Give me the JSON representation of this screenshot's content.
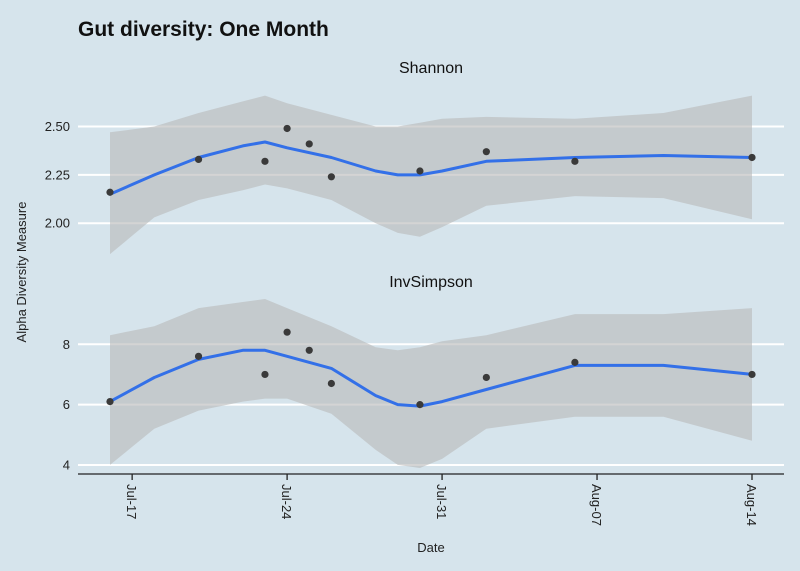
{
  "chart_data": {
    "type": "line",
    "title": "Gut diversity: One Month",
    "xlabel": "Date",
    "ylabel": "Alpha Diversity Measure",
    "x_ticks": [
      "Jul-17",
      "Jul-24",
      "Jul-31",
      "Aug-07",
      "Aug-14"
    ],
    "x_range": [
      "2023-07-16",
      "2023-08-14"
    ],
    "facets": [
      {
        "title": "Shannon",
        "ylim": [
          1.82,
          2.72
        ],
        "y_ticks": [
          2.0,
          2.25,
          2.5
        ],
        "y_tick_labels": [
          "2.00",
          "2.25",
          "2.50"
        ],
        "points": [
          {
            "date": "2023-07-16",
            "value": 2.16
          },
          {
            "date": "2023-07-20",
            "value": 2.33
          },
          {
            "date": "2023-07-23",
            "value": 2.32
          },
          {
            "date": "2023-07-24",
            "value": 2.49
          },
          {
            "date": "2023-07-25",
            "value": 2.41
          },
          {
            "date": "2023-07-26",
            "value": 2.24
          },
          {
            "date": "2023-07-30",
            "value": 2.27
          },
          {
            "date": "2023-08-02",
            "value": 2.37
          },
          {
            "date": "2023-08-06",
            "value": 2.32
          },
          {
            "date": "2023-08-14",
            "value": 2.34
          }
        ],
        "smooth": [
          {
            "date": "2023-07-16",
            "value": 2.15,
            "lower": 1.84,
            "upper": 2.47
          },
          {
            "date": "2023-07-18",
            "value": 2.25,
            "lower": 2.03,
            "upper": 2.5
          },
          {
            "date": "2023-07-20",
            "value": 2.34,
            "lower": 2.12,
            "upper": 2.57
          },
          {
            "date": "2023-07-22",
            "value": 2.4,
            "lower": 2.17,
            "upper": 2.63
          },
          {
            "date": "2023-07-23",
            "value": 2.42,
            "lower": 2.2,
            "upper": 2.66
          },
          {
            "date": "2023-07-24",
            "value": 2.39,
            "lower": 2.18,
            "upper": 2.62
          },
          {
            "date": "2023-07-26",
            "value": 2.34,
            "lower": 2.12,
            "upper": 2.56
          },
          {
            "date": "2023-07-28",
            "value": 2.27,
            "lower": 2.0,
            "upper": 2.5
          },
          {
            "date": "2023-07-29",
            "value": 2.25,
            "lower": 1.95,
            "upper": 2.5
          },
          {
            "date": "2023-07-30",
            "value": 2.25,
            "lower": 1.93,
            "upper": 2.52
          },
          {
            "date": "2023-07-31",
            "value": 2.27,
            "lower": 1.98,
            "upper": 2.54
          },
          {
            "date": "2023-08-02",
            "value": 2.32,
            "lower": 2.09,
            "upper": 2.55
          },
          {
            "date": "2023-08-06",
            "value": 2.34,
            "lower": 2.14,
            "upper": 2.54
          },
          {
            "date": "2023-08-10",
            "value": 2.35,
            "lower": 2.13,
            "upper": 2.57
          },
          {
            "date": "2023-08-14",
            "value": 2.34,
            "lower": 2.02,
            "upper": 2.66
          }
        ]
      },
      {
        "title": "InvSimpson",
        "ylim": [
          3.7,
          9.6
        ],
        "y_ticks": [
          4,
          6,
          8
        ],
        "y_tick_labels": [
          "4",
          "6",
          "8"
        ],
        "points": [
          {
            "date": "2023-07-16",
            "value": 6.1
          },
          {
            "date": "2023-07-20",
            "value": 7.6
          },
          {
            "date": "2023-07-23",
            "value": 7.0
          },
          {
            "date": "2023-07-24",
            "value": 8.4
          },
          {
            "date": "2023-07-25",
            "value": 7.8
          },
          {
            "date": "2023-07-26",
            "value": 6.7
          },
          {
            "date": "2023-07-30",
            "value": 6.0
          },
          {
            "date": "2023-08-02",
            "value": 6.9
          },
          {
            "date": "2023-08-06",
            "value": 7.4
          },
          {
            "date": "2023-08-14",
            "value": 7.0
          }
        ],
        "smooth": [
          {
            "date": "2023-07-16",
            "value": 6.1,
            "lower": 4.0,
            "upper": 8.3
          },
          {
            "date": "2023-07-18",
            "value": 6.9,
            "lower": 5.2,
            "upper": 8.6
          },
          {
            "date": "2023-07-20",
            "value": 7.5,
            "lower": 5.8,
            "upper": 9.2
          },
          {
            "date": "2023-07-22",
            "value": 7.8,
            "lower": 6.1,
            "upper": 9.4
          },
          {
            "date": "2023-07-23",
            "value": 7.8,
            "lower": 6.2,
            "upper": 9.5
          },
          {
            "date": "2023-07-24",
            "value": 7.6,
            "lower": 6.2,
            "upper": 9.2
          },
          {
            "date": "2023-07-26",
            "value": 7.2,
            "lower": 5.7,
            "upper": 8.6
          },
          {
            "date": "2023-07-28",
            "value": 6.3,
            "lower": 4.5,
            "upper": 7.9
          },
          {
            "date": "2023-07-29",
            "value": 6.0,
            "lower": 4.0,
            "upper": 7.8
          },
          {
            "date": "2023-07-30",
            "value": 5.95,
            "lower": 3.9,
            "upper": 7.9
          },
          {
            "date": "2023-07-31",
            "value": 6.1,
            "lower": 4.2,
            "upper": 8.1
          },
          {
            "date": "2023-08-02",
            "value": 6.5,
            "lower": 5.2,
            "upper": 8.3
          },
          {
            "date": "2023-08-06",
            "value": 7.3,
            "lower": 5.6,
            "upper": 9.0
          },
          {
            "date": "2023-08-10",
            "value": 7.3,
            "lower": 5.6,
            "upper": 9.0
          },
          {
            "date": "2023-08-14",
            "value": 7.0,
            "lower": 4.8,
            "upper": 9.2
          }
        ]
      }
    ],
    "colors": {
      "background": "#d6e4ec",
      "smooth_line": "#3370e8",
      "confidence_band": "#b9b9b9",
      "points": "#3a3a3a",
      "grid": "#ffffff"
    },
    "legend": "none",
    "grid": "horizontal-major"
  }
}
